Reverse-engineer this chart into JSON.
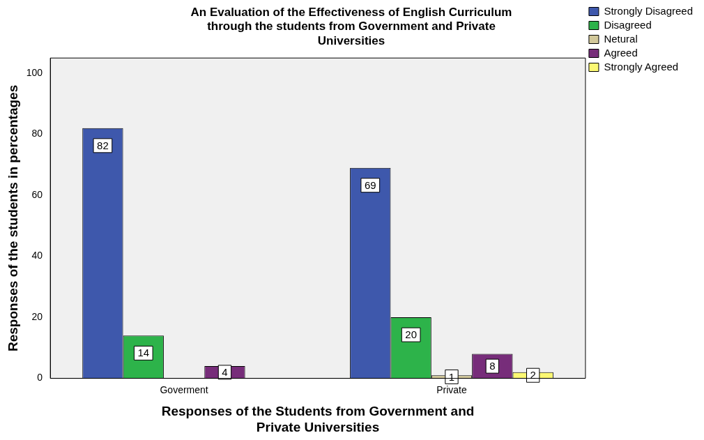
{
  "chart_data": {
    "type": "bar",
    "title": "An Evaluation of the Effectiveness of English Curriculum through the students from Government and Private Universities",
    "xlabel": "Responses of the Students from Government and Private Universities",
    "ylabel": "Responses of the students in percentages",
    "categories": [
      "Goverment",
      "Private"
    ],
    "series": [
      {
        "name": "Strongly Disagreed",
        "color": "#3e58ac",
        "values": [
          82,
          69
        ]
      },
      {
        "name": "Disagreed",
        "color": "#2db34a",
        "values": [
          14,
          20
        ]
      },
      {
        "name": "Netural",
        "color": "#d2c89a",
        "values": [
          null,
          1
        ]
      },
      {
        "name": "Agreed",
        "color": "#772d7a",
        "values": [
          4,
          8
        ]
      },
      {
        "name": "Strongly Agreed",
        "color": "#fbf873",
        "values": [
          null,
          2
        ]
      }
    ],
    "ylim": [
      0,
      105
    ],
    "yticks": [
      0,
      20,
      40,
      60,
      80,
      100
    ],
    "grid": false,
    "legend": "top right",
    "data_labels": true
  }
}
